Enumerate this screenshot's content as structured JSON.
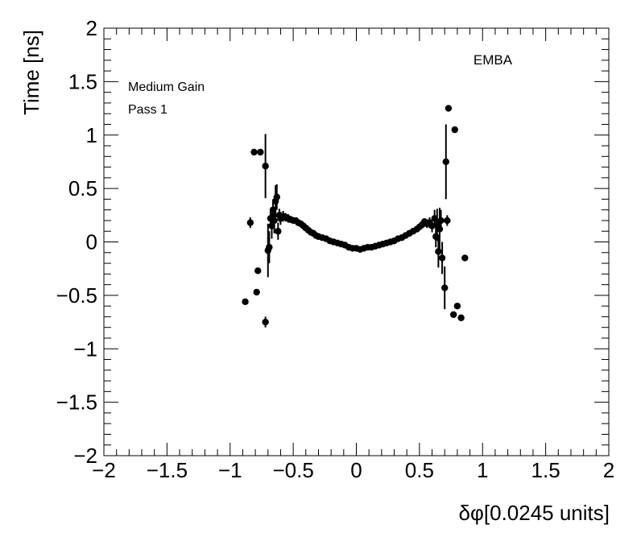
{
  "chart_data": {
    "type": "scatter",
    "title": "",
    "xlabel": "δφ[0.0245 units]",
    "ylabel": "Time [ns]",
    "xlim": [
      -2,
      2
    ],
    "ylim": [
      -2,
      2
    ],
    "x_ticks": [
      "−2",
      "−1.5",
      "−1",
      "−0.5",
      "0",
      "0.5",
      "1",
      "1.5",
      "2"
    ],
    "y_ticks": [
      "−2",
      "−1.5",
      "−1",
      "−0.5",
      "0",
      "0.5",
      "1",
      "1.5",
      "2"
    ],
    "annotations": {
      "label": "EMBA",
      "gain": "Medium Gain",
      "pass": "Pass 1"
    },
    "series": [
      {
        "marker": "circle",
        "color": "#000000",
        "points": [
          {
            "x": -0.88,
            "y": -0.56,
            "err": 0.0
          },
          {
            "x": -0.84,
            "y": 0.18,
            "err": 0.05
          },
          {
            "x": -0.81,
            "y": 0.84,
            "err": 0.0
          },
          {
            "x": -0.79,
            "y": -0.47,
            "err": 0.0
          },
          {
            "x": -0.78,
            "y": -0.27,
            "err": 0.0
          },
          {
            "x": -0.76,
            "y": 0.84,
            "err": 0.0
          },
          {
            "x": -0.72,
            "y": 0.71,
            "err": 0.3
          },
          {
            "x": -0.72,
            "y": -0.75,
            "err": 0.05
          },
          {
            "x": -0.7,
            "y": -0.08,
            "err": 0.25
          },
          {
            "x": -0.69,
            "y": -0.05,
            "err": 0.15
          },
          {
            "x": -0.68,
            "y": 0.22,
            "err": 0.08
          },
          {
            "x": -0.67,
            "y": 0.15,
            "err": 0.12
          },
          {
            "x": -0.66,
            "y": 0.3,
            "err": 0.1
          },
          {
            "x": -0.65,
            "y": 0.2,
            "err": 0.12
          },
          {
            "x": -0.64,
            "y": 0.38,
            "err": 0.15
          },
          {
            "x": -0.63,
            "y": 0.42,
            "err": 0.12
          },
          {
            "x": -0.62,
            "y": 0.1,
            "err": 0.08
          },
          {
            "x": -0.61,
            "y": 0.25,
            "err": 0.06
          },
          {
            "x": -0.6,
            "y": 0.22,
            "err": 0.06
          },
          {
            "x": -0.58,
            "y": 0.24,
            "err": 0.05
          },
          {
            "x": -0.56,
            "y": 0.23,
            "err": 0.04
          },
          {
            "x": -0.54,
            "y": 0.22,
            "err": 0.04
          },
          {
            "x": -0.52,
            "y": 0.21,
            "err": 0.03
          },
          {
            "x": -0.5,
            "y": 0.2,
            "err": 0.03
          },
          {
            "x": -0.48,
            "y": 0.2,
            "err": 0.02
          },
          {
            "x": -0.46,
            "y": 0.18,
            "err": 0.02
          },
          {
            "x": -0.44,
            "y": 0.17,
            "err": 0.02
          },
          {
            "x": -0.42,
            "y": 0.15,
            "err": 0.02
          },
          {
            "x": -0.4,
            "y": 0.13,
            "err": 0.02
          },
          {
            "x": -0.38,
            "y": 0.11,
            "err": 0.01
          },
          {
            "x": -0.36,
            "y": 0.09,
            "err": 0.01
          },
          {
            "x": -0.34,
            "y": 0.08,
            "err": 0.01
          },
          {
            "x": -0.32,
            "y": 0.06,
            "err": 0.01
          },
          {
            "x": -0.3,
            "y": 0.05,
            "err": 0.01
          },
          {
            "x": -0.27,
            "y": 0.04,
            "err": 0.01
          },
          {
            "x": -0.24,
            "y": 0.03,
            "err": 0.01
          },
          {
            "x": -0.21,
            "y": 0.01,
            "err": 0.01
          },
          {
            "x": -0.18,
            "y": 0.0,
            "err": 0.01
          },
          {
            "x": -0.15,
            "y": -0.01,
            "err": 0.01
          },
          {
            "x": -0.12,
            "y": -0.02,
            "err": 0.01
          },
          {
            "x": -0.09,
            "y": -0.03,
            "err": 0.01
          },
          {
            "x": -0.06,
            "y": -0.05,
            "err": 0.01
          },
          {
            "x": -0.03,
            "y": -0.06,
            "err": 0.01
          },
          {
            "x": 0.0,
            "y": -0.06,
            "err": 0.01
          },
          {
            "x": 0.03,
            "y": -0.07,
            "err": 0.01
          },
          {
            "x": 0.06,
            "y": -0.06,
            "err": 0.01
          },
          {
            "x": 0.09,
            "y": -0.05,
            "err": 0.01
          },
          {
            "x": 0.12,
            "y": -0.05,
            "err": 0.01
          },
          {
            "x": 0.15,
            "y": -0.04,
            "err": 0.01
          },
          {
            "x": 0.18,
            "y": -0.03,
            "err": 0.01
          },
          {
            "x": 0.21,
            "y": -0.02,
            "err": 0.01
          },
          {
            "x": 0.24,
            "y": -0.01,
            "err": 0.01
          },
          {
            "x": 0.27,
            "y": 0.0,
            "err": 0.01
          },
          {
            "x": 0.3,
            "y": 0.01,
            "err": 0.01
          },
          {
            "x": 0.33,
            "y": 0.03,
            "err": 0.01
          },
          {
            "x": 0.36,
            "y": 0.04,
            "err": 0.01
          },
          {
            "x": 0.39,
            "y": 0.06,
            "err": 0.01
          },
          {
            "x": 0.42,
            "y": 0.08,
            "err": 0.01
          },
          {
            "x": 0.45,
            "y": 0.1,
            "err": 0.02
          },
          {
            "x": 0.48,
            "y": 0.12,
            "err": 0.02
          },
          {
            "x": 0.5,
            "y": 0.14,
            "err": 0.02
          },
          {
            "x": 0.52,
            "y": 0.16,
            "err": 0.03
          },
          {
            "x": 0.54,
            "y": 0.19,
            "err": 0.03
          },
          {
            "x": 0.56,
            "y": 0.17,
            "err": 0.04
          },
          {
            "x": 0.58,
            "y": 0.18,
            "err": 0.05
          },
          {
            "x": 0.6,
            "y": 0.15,
            "err": 0.06
          },
          {
            "x": 0.62,
            "y": 0.22,
            "err": 0.08
          },
          {
            "x": 0.63,
            "y": 0.05,
            "err": 0.1
          },
          {
            "x": 0.64,
            "y": 0.16,
            "err": 0.15
          },
          {
            "x": 0.65,
            "y": -0.09,
            "err": 0.15
          },
          {
            "x": 0.66,
            "y": 0.12,
            "err": 0.2
          },
          {
            "x": 0.67,
            "y": 0.2,
            "err": 0.1
          },
          {
            "x": 0.68,
            "y": -0.15,
            "err": 0.15
          },
          {
            "x": 0.7,
            "y": -0.43,
            "err": 0.2
          },
          {
            "x": 0.71,
            "y": 0.75,
            "err": 0.35
          },
          {
            "x": 0.72,
            "y": 0.2,
            "err": 0.05
          },
          {
            "x": 0.73,
            "y": 1.25,
            "err": 0.0
          },
          {
            "x": 0.77,
            "y": -0.68,
            "err": 0.0
          },
          {
            "x": 0.78,
            "y": 1.05,
            "err": 0.0
          },
          {
            "x": 0.8,
            "y": -0.6,
            "err": 0.0
          },
          {
            "x": 0.83,
            "y": -0.71,
            "err": 0.0
          },
          {
            "x": 0.86,
            "y": -0.15,
            "err": 0.0
          }
        ]
      }
    ]
  }
}
